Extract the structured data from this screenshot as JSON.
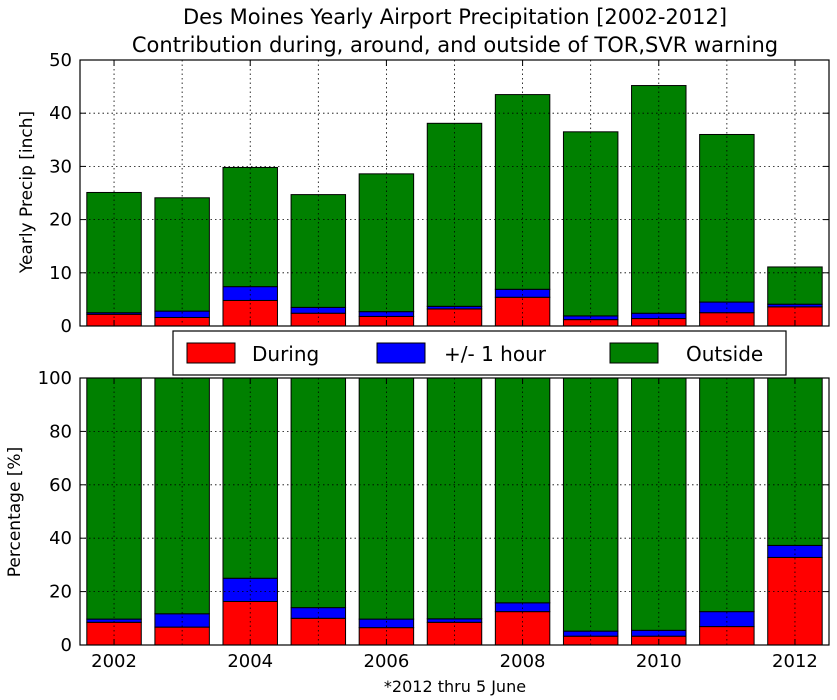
{
  "chart_data": {
    "title": "Des Moines Yearly Airport Precipitation [2002-2012]",
    "subtitle": "Contribution during, around, and outside of TOR,SVR warning",
    "footnote": "*2012 thru 5 June",
    "colors": {
      "During": "#ff0000",
      "+/- 1 hour": "#0000ff",
      "Outside": "#008000"
    },
    "legend": {
      "placement": "center, between panels",
      "entries": [
        "During",
        "+/- 1 hour",
        "Outside"
      ]
    },
    "panels": [
      {
        "type": "bar",
        "stacked": true,
        "ylabel": "Yearly Precip [inch]",
        "ylim": [
          0,
          50
        ],
        "yticks": [
          "0",
          "10",
          "20",
          "30",
          "40",
          "50"
        ],
        "grid": true,
        "categories": [
          2002,
          2003,
          2004,
          2005,
          2006,
          2007,
          2008,
          2009,
          2010,
          2011,
          2012
        ],
        "series": [
          {
            "name": "During",
            "values": [
              2.2,
              1.6,
              4.8,
              2.4,
              1.8,
              3.2,
              5.4,
              1.2,
              1.4,
              2.5,
              3.6
            ]
          },
          {
            "name": "+/- 1 hour",
            "values": [
              0.3,
              1.2,
              2.6,
              1.1,
              0.9,
              0.5,
              1.5,
              0.7,
              1.0,
              2.0,
              0.5
            ]
          },
          {
            "name": "Outside",
            "values": [
              22.6,
              21.3,
              22.4,
              21.2,
              25.9,
              34.4,
              36.6,
              34.6,
              42.8,
              31.5,
              7.0
            ]
          }
        ]
      },
      {
        "type": "bar",
        "stacked": true,
        "ylabel": "Percentage [%]",
        "ylim": [
          0,
          100
        ],
        "yticks": [
          "0",
          "20",
          "40",
          "60",
          "80",
          "100"
        ],
        "grid": true,
        "categories": [
          2002,
          2003,
          2004,
          2005,
          2006,
          2007,
          2008,
          2009,
          2010,
          2011,
          2012
        ],
        "xticks": [
          "2002",
          "2004",
          "2006",
          "2008",
          "2010",
          "2012"
        ],
        "series": [
          {
            "name": "During",
            "values": [
              8.5,
              6.7,
              16.3,
              10.0,
              6.5,
              8.5,
              12.5,
              3.3,
              3.3,
              6.9,
              32.8
            ]
          },
          {
            "name": "+/- 1 hour",
            "values": [
              1.2,
              5.0,
              8.7,
              4.0,
              3.2,
              1.3,
              3.3,
              1.9,
              2.2,
              5.6,
              4.5
            ]
          },
          {
            "name": "Outside",
            "values": [
              90.3,
              88.3,
              75.0,
              86.0,
              90.3,
              90.2,
              84.2,
              94.8,
              94.5,
              87.5,
              62.7
            ]
          }
        ]
      }
    ]
  }
}
